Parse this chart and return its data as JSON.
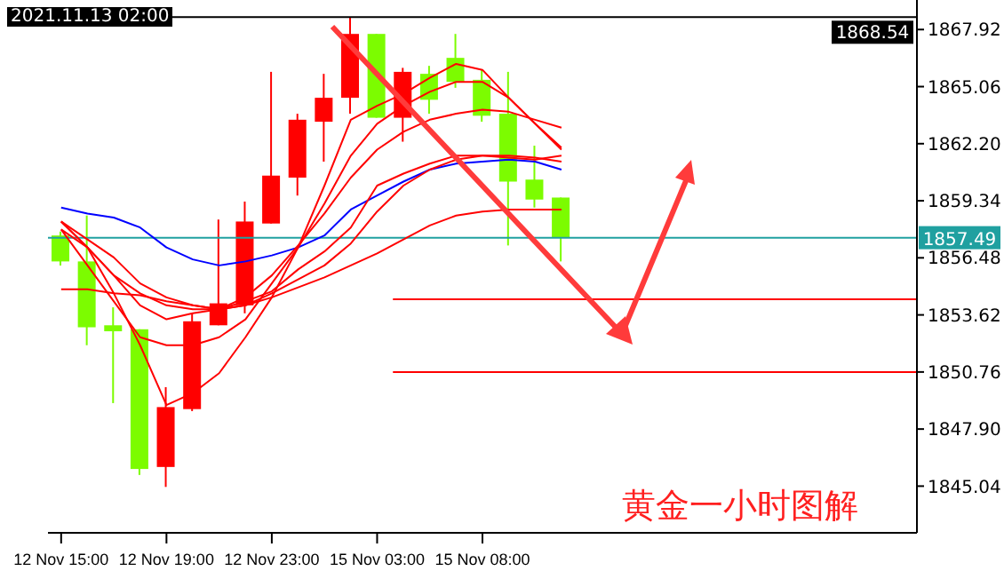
{
  "chart_data": {
    "type": "candlestick",
    "categories": [
      "12 Nov 15:00",
      null,
      null,
      null,
      "12 Nov 19:00",
      null,
      null,
      null,
      "12 Nov 23:00",
      null,
      null,
      null,
      "15 Nov 03:00",
      null,
      null,
      null,
      "15 Nov 08:00",
      null,
      null,
      null,
      null,
      null,
      null,
      null,
      null,
      null,
      null,
      null,
      null,
      null,
      null,
      null,
      null
    ],
    "ohlc": [
      [
        1857.6,
        1857.8,
        1856.1,
        1856.3
      ],
      [
        1856.3,
        1858.6,
        1852.1,
        1853.0
      ],
      [
        1853.1,
        1854.0,
        1849.2,
        1852.8
      ],
      [
        1852.9,
        1852.9,
        1845.6,
        1845.9
      ],
      [
        1846.0,
        1850.0,
        1845.0,
        1849.0
      ],
      [
        1848.9,
        1853.7,
        1848.8,
        1853.3
      ],
      [
        1853.1,
        1858.4,
        1853.1,
        1854.2
      ],
      [
        1854.1,
        1859.3,
        1853.7,
        1858.3
      ],
      [
        1858.2,
        1865.8,
        1858.2,
        1860.6
      ],
      [
        1860.5,
        1863.7,
        1859.6,
        1863.4
      ],
      [
        1863.3,
        1865.7,
        1861.3,
        1864.5
      ],
      [
        1864.5,
        1868.54,
        1863.7,
        1867.7
      ],
      [
        1867.7,
        1867.7,
        1863.5,
        1863.5
      ],
      [
        1863.5,
        1866.0,
        1862.3,
        1865.8
      ],
      [
        1865.7,
        1866.1,
        1863.7,
        1864.4
      ],
      [
        1866.5,
        1867.7,
        1865.0,
        1865.3
      ],
      [
        1865.4,
        1865.9,
        1863.3,
        1863.6
      ],
      [
        1863.7,
        1865.8,
        1857.1,
        1860.3
      ],
      [
        1860.4,
        1862.1,
        1859.0,
        1859.4
      ],
      [
        1859.5,
        1859.5,
        1856.3,
        1857.49
      ],
      null,
      null,
      null,
      null,
      null,
      null,
      null,
      null,
      null,
      null,
      null,
      null,
      null
    ],
    "colors": [
      "#7cfc00",
      "#7cfc00",
      "#7cfc00",
      "#7cfc00",
      "#ff0000",
      "#ff0000",
      "#ff0000",
      "#ff0000",
      "#ff0000",
      "#ff0000",
      "#ff0000",
      "#ff0000",
      "#7cfc00",
      "#ff0000",
      "#7cfc00",
      "#7cfc00",
      "#7cfc00",
      "#7cfc00",
      "#7cfc00",
      "#7cfc00",
      null,
      null,
      null,
      null,
      null,
      null,
      null,
      null,
      null,
      null,
      null,
      null,
      null
    ],
    "series": [
      {
        "type": "line",
        "color": "#0000ff",
        "values": [
          1859.0,
          1858.7,
          1858.5,
          1858.0,
          1857.0,
          1856.4,
          1856.1,
          1856.3,
          1856.6,
          1857.0,
          1857.6,
          1858.9,
          1859.6,
          1860.3,
          1860.9,
          1861.2,
          1861.3,
          1861.4,
          1861.3,
          1860.9,
          null,
          null,
          null,
          null,
          null,
          null,
          null,
          null,
          null,
          null,
          null,
          null,
          null
        ]
      },
      {
        "type": "line",
        "color": "#ff0000",
        "values": [
          1854.9,
          1854.9,
          1854.7,
          1854.6,
          1854.3,
          1854.1,
          1853.9,
          1854.1,
          1854.5,
          1855.0,
          1855.5,
          1856.1,
          1856.7,
          1857.4,
          1858.1,
          1858.6,
          1858.8,
          1858.9,
          1858.9,
          1858.9,
          null,
          null,
          null,
          null,
          null,
          null,
          null,
          null,
          null,
          null,
          null,
          null,
          null
        ]
      },
      {
        "type": "line",
        "color": "#ff0000",
        "values": [
          1858.3,
          1857.4,
          1856.5,
          1855.2,
          1854.5,
          1854.1,
          1853.9,
          1854.1,
          1854.7,
          1855.4,
          1856.1,
          1857.2,
          1858.8,
          1860.1,
          1860.9,
          1861.4,
          1861.6,
          1861.6,
          1861.5,
          1861.3,
          null,
          null,
          null,
          null,
          null,
          null,
          null,
          null,
          null,
          null,
          null,
          null,
          null
        ]
      },
      {
        "type": "line",
        "color": "#ff0000",
        "values": [
          1857.9,
          1857.0,
          1855.6,
          1854.7,
          1854.1,
          1853.9,
          1853.9,
          1854.3,
          1854.8,
          1855.9,
          1856.8,
          1858.0,
          1860.1,
          1860.7,
          1861.2,
          1861.6,
          1861.6,
          1861.5,
          1861.4,
          1861.6,
          null,
          null,
          null,
          null,
          null,
          null,
          null,
          null,
          null,
          null,
          null,
          null,
          null
        ]
      },
      {
        "type": "line",
        "color": "#ff0000",
        "values": [
          1858.3,
          1857.0,
          1855.6,
          1854.1,
          1853.4,
          1853.7,
          1853.9,
          1854.5,
          1855.6,
          1857.1,
          1858.7,
          1860.5,
          1861.9,
          1862.8,
          1863.4,
          1863.7,
          1863.9,
          1863.8,
          1863.4,
          1863.0,
          null,
          null,
          null,
          null,
          null,
          null,
          null,
          null,
          null,
          null,
          null,
          null,
          null
        ]
      },
      {
        "type": "line",
        "color": "#ff0000",
        "values": [
          1857.9,
          1856.1,
          1854.3,
          1852.5,
          1852.1,
          1852.1,
          1852.5,
          1853.4,
          1855.2,
          1857.0,
          1859.2,
          1861.6,
          1863.2,
          1864.1,
          1864.8,
          1865.3,
          1865.3,
          1864.5,
          1863.2,
          1861.9,
          null,
          null,
          null,
          null,
          null,
          null,
          null,
          null,
          null,
          null,
          null,
          null,
          null
        ]
      },
      {
        "type": "line",
        "color": "#ff0000",
        "values": [
          1858.3,
          1857.0,
          1854.7,
          1852.1,
          1849.1,
          1849.7,
          1850.7,
          1852.5,
          1854.5,
          1857.0,
          1860.1,
          1863.4,
          1864.1,
          1864.7,
          1865.5,
          1866.2,
          1865.9,
          1864.5,
          1863.2,
          1862.0,
          null,
          null,
          null,
          null,
          null,
          null,
          null,
          null,
          null,
          null,
          null,
          null,
          null
        ]
      }
    ],
    "ylim": [
      1842.7,
      1869.4
    ],
    "yticks": [
      1845.04,
      {
        "value": 1847.9,
        "label": "1847.90"
      },
      1850.76,
      1853.62,
      1856.48,
      1859.34,
      {
        "value": 1862.2,
        "label": "1862.20"
      },
      1865.06,
      1867.92
    ],
    "ref_lines": [
      {
        "axis": "y",
        "value": 1868.54,
        "label": "1868.54",
        "color": "#000000"
      },
      {
        "axis": "y",
        "value": 1857.49,
        "label": "1857.49",
        "color": "#20a0a0"
      },
      {
        "axis": "y",
        "value": 1854.4,
        "label": null,
        "color": "#ff0000"
      },
      {
        "axis": "y",
        "value": 1850.76,
        "label": null,
        "color": "#ff0000"
      }
    ],
    "annotations": [
      "2021.11.13 02:00",
      "黄金一小时图解"
    ],
    "grid": false,
    "marker": "none",
    "line_style": "solid"
  }
}
